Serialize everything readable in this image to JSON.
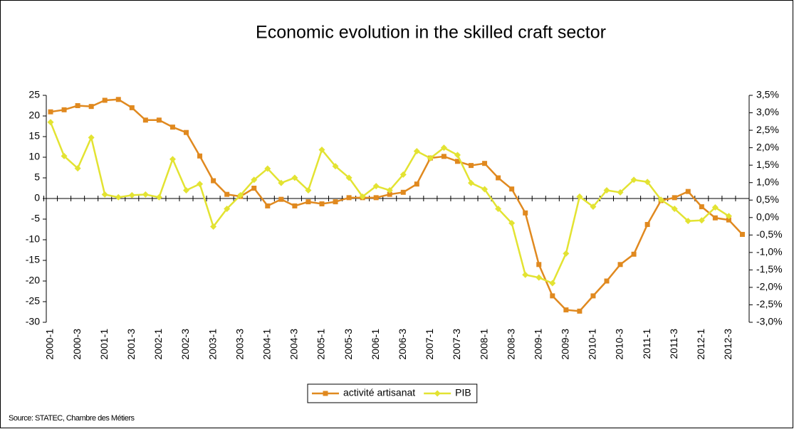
{
  "chart_data": {
    "type": "line",
    "title": "Economic evolution in the skilled craft sector",
    "source": "Source: STATEC, Chambre des Métiers",
    "categories": [
      "2000-1",
      null,
      "2000-3",
      null,
      "2001-1",
      null,
      "2001-3",
      null,
      "2002-1",
      null,
      "2002-3",
      null,
      "2003-1",
      null,
      "2003-3",
      null,
      "2004-1",
      null,
      "2004-3",
      null,
      "2005-1",
      null,
      "2005-3",
      null,
      "2006-1",
      null,
      "2006-3",
      null,
      "2007-1",
      null,
      "2007-3",
      null,
      "2008-1",
      null,
      "2008-3",
      null,
      "2009-1",
      null,
      "2009-3",
      null,
      "2010-1",
      null,
      "2010-3",
      null,
      "2011-1",
      null,
      "2011-3",
      null,
      "2012-1",
      null,
      "2012-3",
      null
    ],
    "series": [
      {
        "name": "activité artisanat",
        "color": "#e0891f",
        "marker": "square",
        "axis": "y",
        "values": [
          21,
          21.5,
          22.5,
          22.3,
          23.8,
          24,
          22,
          19,
          19,
          17.3,
          16,
          10.3,
          4.3,
          1,
          0.5,
          2.5,
          -1.8,
          -0.2,
          -1.8,
          -0.8,
          -1.3,
          -0.8,
          0.2,
          0.2,
          0.2,
          1,
          1.5,
          3.5,
          9.8,
          10.2,
          9,
          8,
          8.5,
          5,
          2.3,
          -3.5,
          -16,
          -23.6,
          -27,
          -27.3,
          -23.6,
          -20,
          -16,
          -13.5,
          -6.3,
          -0.5,
          0.2,
          1.7,
          -2,
          -4.7,
          -5.2,
          -8.7
        ]
      },
      {
        "name": "PIB",
        "color": "#e3e332",
        "marker": "diamond",
        "axis": "y2",
        "values": [
          2.73,
          1.76,
          1.41,
          2.29,
          0.66,
          0.58,
          0.64,
          0.66,
          0.58,
          1.67,
          0.78,
          0.96,
          -0.26,
          0.25,
          0.64,
          1.08,
          1.4,
          0.99,
          1.14,
          0.78,
          1.94,
          1.47,
          1.14,
          0.6,
          0.9,
          0.78,
          1.23,
          1.9,
          1.7,
          2.0,
          1.79,
          0.99,
          0.81,
          0.25,
          -0.16,
          -1.64,
          -1.72,
          -1.88,
          -1.03,
          0.6,
          0.31,
          0.78,
          0.72,
          1.08,
          1.02,
          0.51,
          0.25,
          -0.1,
          -0.08,
          0.29,
          0.04,
          null
        ]
      }
    ],
    "ylim": [
      -30,
      25
    ],
    "yticks": [
      -30,
      -25,
      -20,
      -15,
      -10,
      -5,
      0,
      5,
      10,
      15,
      20,
      25
    ],
    "y2lim": [
      -3.0,
      3.5
    ],
    "y2ticks": [
      {
        "value": -3.0,
        "label": "-3,0%"
      },
      {
        "value": -2.5,
        "label": "-2,5%"
      },
      {
        "value": -2.0,
        "label": "-2,0%"
      },
      {
        "value": -1.5,
        "label": "-1,5%"
      },
      {
        "value": -1.0,
        "label": "-1,0%"
      },
      {
        "value": -0.5,
        "label": "-0,5%"
      },
      {
        "value": 0.0,
        "label": "0,0%"
      },
      {
        "value": 0.5,
        "label": "0,5%"
      },
      {
        "value": 1.0,
        "label": "1,0%"
      },
      {
        "value": 1.5,
        "label": "1,5%"
      },
      {
        "value": 2.0,
        "label": "2,0%"
      },
      {
        "value": 2.5,
        "label": "2,5%"
      },
      {
        "value": 3.0,
        "label": "3,0%"
      },
      {
        "value": 3.5,
        "label": "3,5%"
      }
    ],
    "grid": false,
    "legend": "bottom"
  }
}
